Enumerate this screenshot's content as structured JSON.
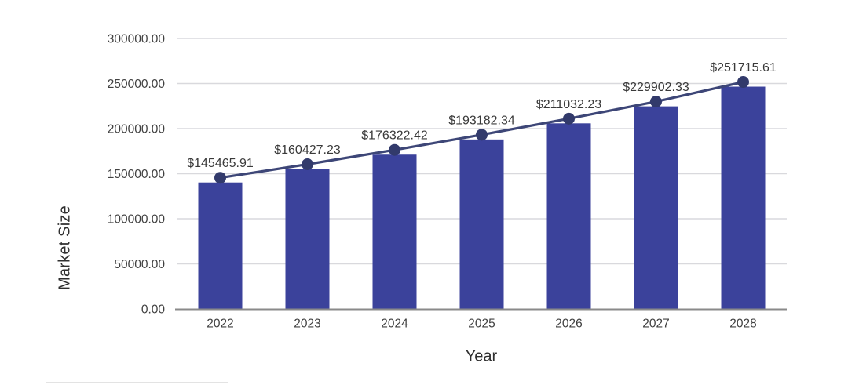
{
  "page": {
    "background": "#ffffff"
  },
  "chart_data": {
    "type": "bar",
    "line_overlay": true,
    "title": "",
    "xlabel": "Year",
    "ylabel": "Market Size",
    "categories": [
      "2022",
      "2023",
      "2024",
      "2025",
      "2026",
      "2027",
      "2028"
    ],
    "values": [
      145465.91,
      160427.23,
      176322.42,
      193182.34,
      211032.23,
      229902.33,
      251715.61
    ],
    "data_labels": [
      "$145465.91",
      "$160427.23",
      "$176322.42",
      "$193182.34",
      "$211032.23",
      "$229902.33",
      "$251715.61"
    ],
    "y_ticks": [
      {
        "value": 300000,
        "label": "300000.00"
      },
      {
        "value": 250000,
        "label": "250000.00"
      },
      {
        "value": 200000,
        "label": "200000.00"
      },
      {
        "value": 150000,
        "label": "150000.00"
      },
      {
        "value": 100000,
        "label": "100000.00"
      },
      {
        "value": 50000,
        "label": "50000.00"
      },
      {
        "value": 0,
        "label": "0.00"
      }
    ],
    "ylim": [
      0,
      300000
    ],
    "grid": true,
    "legend": null,
    "colors": {
      "bar": "#3B429B",
      "line": "#3D4677",
      "marker": "#323A6B",
      "grid": "#D9D9DD",
      "axis": "#8A8A8A",
      "tick_text": "#414141",
      "label_text": "#3A3A3A"
    }
  }
}
